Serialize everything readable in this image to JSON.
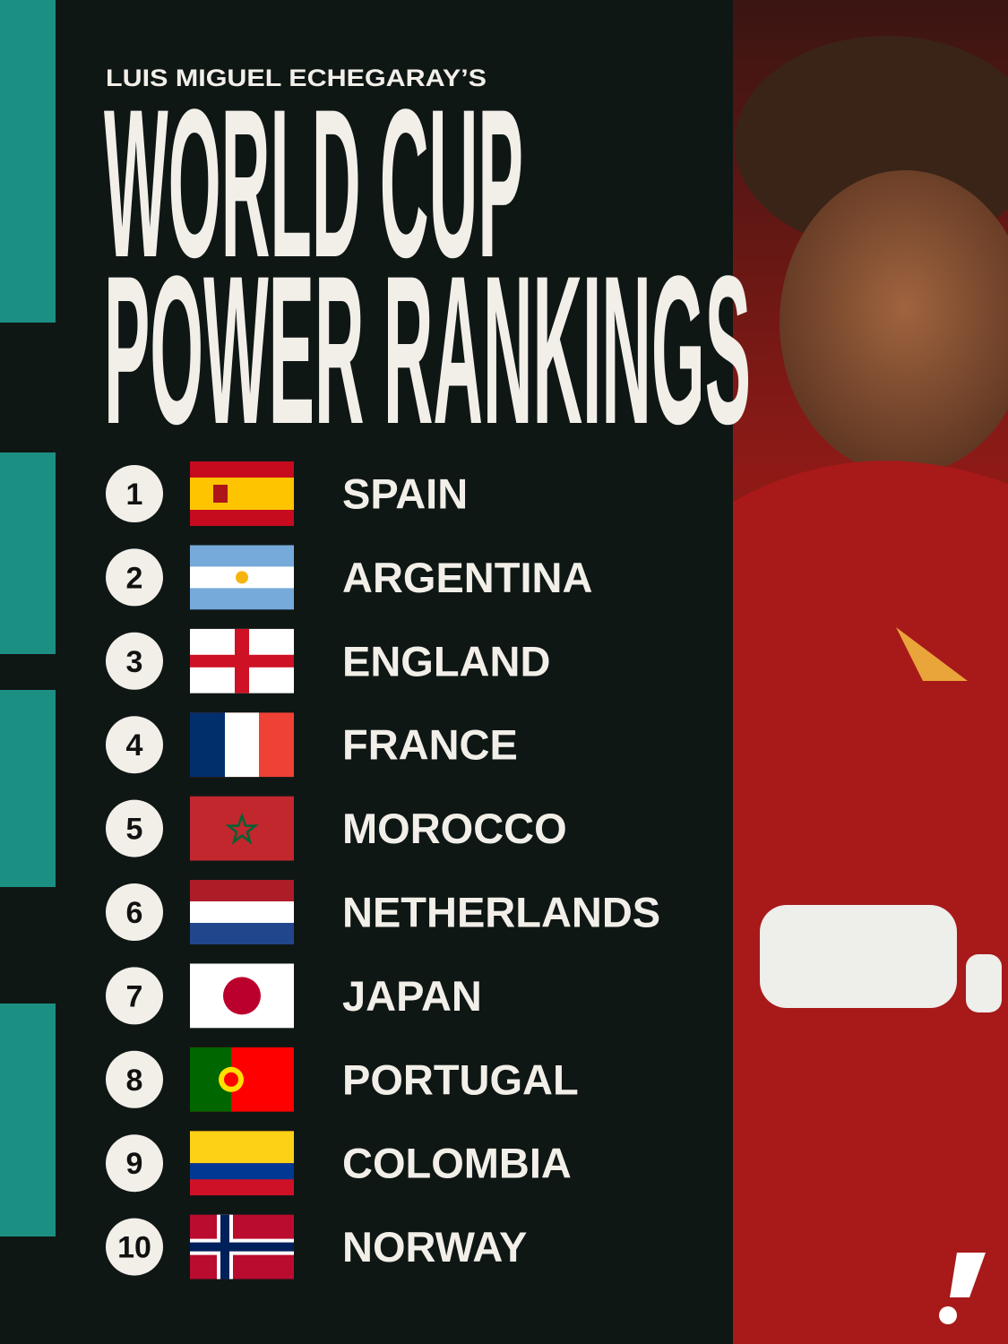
{
  "header": {
    "byline": "LUIS MIGUEL ECHEGARAY’S",
    "title_line1": "WORLD CUP",
    "title_line2": "POWER RANKINGS"
  },
  "rankings": [
    {
      "rank": 1,
      "country": "SPAIN"
    },
    {
      "rank": 2,
      "country": "ARGENTINA"
    },
    {
      "rank": 3,
      "country": "ENGLAND"
    },
    {
      "rank": 4,
      "country": "FRANCE"
    },
    {
      "rank": 5,
      "country": "MOROCCO"
    },
    {
      "rank": 6,
      "country": "NETHERLANDS"
    },
    {
      "rank": 7,
      "country": "JAPAN"
    },
    {
      "rank": 8,
      "country": "PORTUGAL"
    },
    {
      "rank": 9,
      "country": "COLOMBIA"
    },
    {
      "rank": 10,
      "country": "NORWAY"
    }
  ]
}
